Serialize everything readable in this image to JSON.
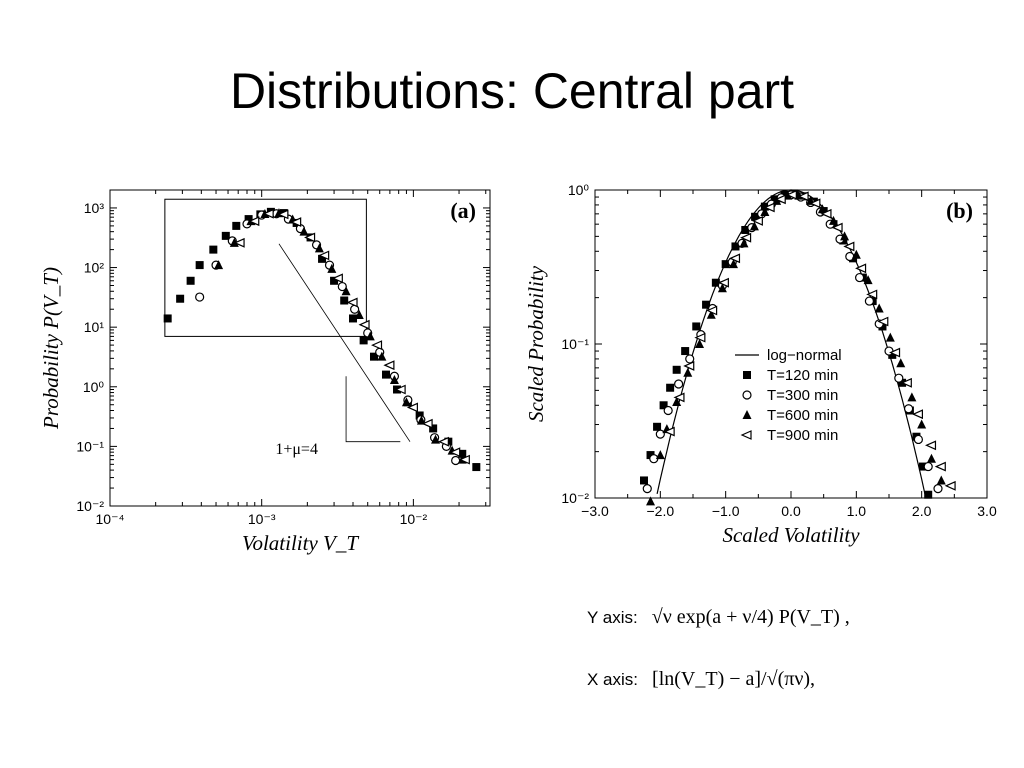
{
  "title": "Distributions: Central part",
  "notes": {
    "y_label": "Y axis:",
    "y_formula": "√ν exp(a + ν/4) P(V_T) ,",
    "x_label": "X axis:",
    "x_formula": "[ln(V_T) − a]/√(πν),"
  },
  "chart_data": [
    {
      "type": "scatter",
      "panel_label": "(a)",
      "xlabel": "Volatility V_T",
      "ylabel": "Probability P(V_T)",
      "x_scale": "log",
      "y_scale": "log",
      "xlim": [
        0.0001,
        0.032
      ],
      "ylim": [
        0.01,
        2000
      ],
      "x_ticks": [
        "10⁻⁴",
        "10⁻³",
        "10⁻²"
      ],
      "y_ticks": [
        "10⁻²",
        "10⁻¹",
        "10⁰",
        "10¹",
        "10²",
        "10³"
      ],
      "annotation": "1+μ=4",
      "series": [
        {
          "marker": "square-filled",
          "points": [
            [
              0.00024,
              14
            ],
            [
              0.00029,
              30
            ],
            [
              0.00034,
              60
            ],
            [
              0.00039,
              110
            ],
            [
              0.00048,
              200
            ],
            [
              0.00058,
              340
            ],
            [
              0.00068,
              500
            ],
            [
              0.00082,
              650
            ],
            [
              0.00098,
              780
            ],
            [
              0.00115,
              860
            ],
            [
              0.0014,
              820
            ],
            [
              0.0017,
              560
            ],
            [
              0.0021,
              320
            ],
            [
              0.0025,
              140
            ],
            [
              0.003,
              60
            ],
            [
              0.0035,
              28
            ],
            [
              0.004,
              14
            ],
            [
              0.0047,
              6
            ],
            [
              0.0055,
              3.2
            ],
            [
              0.0066,
              1.6
            ],
            [
              0.0078,
              0.9
            ],
            [
              0.0092,
              0.55
            ],
            [
              0.011,
              0.33
            ],
            [
              0.0135,
              0.2
            ],
            [
              0.017,
              0.12
            ],
            [
              0.021,
              0.075
            ],
            [
              0.026,
              0.045
            ]
          ]
        },
        {
          "marker": "circle-open",
          "points": [
            [
              0.00039,
              32
            ],
            [
              0.0005,
              110
            ],
            [
              0.00064,
              280
            ],
            [
              0.0008,
              540
            ],
            [
              0.001,
              760
            ],
            [
              0.00125,
              800
            ],
            [
              0.0015,
              650
            ],
            [
              0.0018,
              450
            ],
            [
              0.0023,
              240
            ],
            [
              0.0028,
              110
            ],
            [
              0.0034,
              48
            ],
            [
              0.0041,
              20
            ],
            [
              0.005,
              8
            ],
            [
              0.006,
              3.8
            ],
            [
              0.0075,
              1.5
            ],
            [
              0.0092,
              0.6
            ],
            [
              0.0112,
              0.28
            ],
            [
              0.0138,
              0.14
            ],
            [
              0.0165,
              0.1
            ],
            [
              0.019,
              0.058
            ]
          ]
        },
        {
          "marker": "triangle-filled",
          "points": [
            [
              0.00052,
              110
            ],
            [
              0.00066,
              260
            ],
            [
              0.00085,
              600
            ],
            [
              0.00105,
              790
            ],
            [
              0.0013,
              820
            ],
            [
              0.0016,
              640
            ],
            [
              0.0019,
              400
            ],
            [
              0.0024,
              210
            ],
            [
              0.0029,
              95
            ],
            [
              0.0036,
              40
            ],
            [
              0.0044,
              16
            ],
            [
              0.0052,
              7
            ],
            [
              0.0062,
              3.2
            ],
            [
              0.0075,
              1.3
            ],
            [
              0.009,
              0.55
            ],
            [
              0.0113,
              0.27
            ],
            [
              0.014,
              0.13
            ],
            [
              0.018,
              0.085
            ],
            [
              0.021,
              0.06
            ]
          ]
        },
        {
          "marker": "triangle-left-open",
          "points": [
            [
              0.00072,
              260
            ],
            [
              0.0009,
              600
            ],
            [
              0.00112,
              800
            ],
            [
              0.0014,
              780
            ],
            [
              0.0017,
              580
            ],
            [
              0.0021,
              320
            ],
            [
              0.0026,
              160
            ],
            [
              0.0032,
              66
            ],
            [
              0.004,
              26
            ],
            [
              0.0048,
              11
            ],
            [
              0.0058,
              5
            ],
            [
              0.007,
              2.3
            ],
            [
              0.0083,
              0.9
            ],
            [
              0.01,
              0.45
            ],
            [
              0.0125,
              0.24
            ],
            [
              0.016,
              0.12
            ],
            [
              0.019,
              0.08
            ],
            [
              0.022,
              0.06
            ]
          ]
        }
      ],
      "inset_box_data": {
        "x": [
          0.00023,
          0.0049
        ],
        "y": [
          7,
          1400
        ]
      },
      "slope_line_data": {
        "x": [
          0.0013,
          0.0095
        ],
        "y": [
          250,
          0.12
        ]
      },
      "slope_triangle_data": {
        "x": [
          0.0036,
          0.0082
        ],
        "y": [
          1.5,
          0.12
        ]
      }
    },
    {
      "type": "scatter",
      "panel_label": "(b)",
      "xlabel": "Scaled Volatility",
      "ylabel": "Scaled Probability",
      "x_scale": "linear",
      "y_scale": "log",
      "xlim": [
        -3.0,
        3.0
      ],
      "ylim": [
        0.01,
        1
      ],
      "x_ticks": [
        "−3.0",
        "−2.0",
        "−1.0",
        "0.0",
        "1.0",
        "2.0",
        "3.0"
      ],
      "y_ticks": [
        "10⁻²",
        "10⁻¹",
        "10⁰"
      ],
      "curve_sigma": 0.68,
      "legend": [
        {
          "label": "log−normal",
          "marker": "line"
        },
        {
          "label": "T=120 min",
          "marker": "square-filled"
        },
        {
          "label": "T=300 min",
          "marker": "circle-open"
        },
        {
          "label": "T=600 min",
          "marker": "triangle-filled"
        },
        {
          "label": "T=900 min",
          "marker": "triangle-left-open"
        }
      ],
      "series": [
        {
          "marker": "square-filled",
          "points": [
            [
              -2.25,
              0.013
            ],
            [
              -2.15,
              0.019
            ],
            [
              -2.05,
              0.029
            ],
            [
              -1.95,
              0.04
            ],
            [
              -1.85,
              0.052
            ],
            [
              -1.75,
              0.068
            ],
            [
              -1.62,
              0.09
            ],
            [
              -1.45,
              0.13
            ],
            [
              -1.3,
              0.18
            ],
            [
              -1.15,
              0.25
            ],
            [
              -1.0,
              0.33
            ],
            [
              -0.85,
              0.43
            ],
            [
              -0.7,
              0.55
            ],
            [
              -0.55,
              0.67
            ],
            [
              -0.4,
              0.78
            ],
            [
              -0.25,
              0.87
            ],
            [
              -0.1,
              0.93
            ],
            [
              0.05,
              0.95
            ],
            [
              0.2,
              0.91
            ],
            [
              0.35,
              0.84
            ],
            [
              0.5,
              0.73
            ],
            [
              0.65,
              0.6
            ],
            [
              0.8,
              0.47
            ],
            [
              0.95,
              0.36
            ],
            [
              1.1,
              0.27
            ],
            [
              1.25,
              0.19
            ],
            [
              1.4,
              0.13
            ],
            [
              1.55,
              0.085
            ],
            [
              1.7,
              0.056
            ],
            [
              1.82,
              0.037
            ],
            [
              1.92,
              0.025
            ],
            [
              2.02,
              0.016
            ],
            [
              2.1,
              0.0105
            ]
          ]
        },
        {
          "marker": "circle-open",
          "points": [
            [
              -2.2,
              0.0115
            ],
            [
              -2.1,
              0.018
            ],
            [
              -2.0,
              0.026
            ],
            [
              -1.88,
              0.037
            ],
            [
              -1.72,
              0.055
            ],
            [
              -1.55,
              0.08
            ],
            [
              -1.38,
              0.115
            ],
            [
              -1.2,
              0.17
            ],
            [
              -1.05,
              0.24
            ],
            [
              -0.9,
              0.34
            ],
            [
              -0.75,
              0.45
            ],
            [
              -0.6,
              0.57
            ],
            [
              -0.45,
              0.7
            ],
            [
              -0.3,
              0.81
            ],
            [
              -0.15,
              0.89
            ],
            [
              0.0,
              0.93
            ],
            [
              0.15,
              0.9
            ],
            [
              0.3,
              0.83
            ],
            [
              0.45,
              0.72
            ],
            [
              0.6,
              0.6
            ],
            [
              0.75,
              0.48
            ],
            [
              0.9,
              0.37
            ],
            [
              1.05,
              0.27
            ],
            [
              1.2,
              0.19
            ],
            [
              1.35,
              0.135
            ],
            [
              1.5,
              0.09
            ],
            [
              1.65,
              0.06
            ],
            [
              1.8,
              0.038
            ],
            [
              1.95,
              0.024
            ],
            [
              2.1,
              0.016
            ],
            [
              2.25,
              0.0115
            ]
          ]
        },
        {
          "marker": "triangle-filled",
          "points": [
            [
              -2.15,
              0.0095
            ],
            [
              -2.0,
              0.019
            ],
            [
              -1.9,
              0.028
            ],
            [
              -1.75,
              0.042
            ],
            [
              -1.58,
              0.065
            ],
            [
              -1.4,
              0.1
            ],
            [
              -1.22,
              0.155
            ],
            [
              -1.05,
              0.23
            ],
            [
              -0.88,
              0.33
            ],
            [
              -0.72,
              0.45
            ],
            [
              -0.56,
              0.58
            ],
            [
              -0.4,
              0.72
            ],
            [
              -0.22,
              0.85
            ],
            [
              -0.05,
              0.92
            ],
            [
              0.12,
              0.92
            ],
            [
              0.3,
              0.85
            ],
            [
              0.48,
              0.75
            ],
            [
              0.65,
              0.63
            ],
            [
              0.82,
              0.5
            ],
            [
              1.0,
              0.38
            ],
            [
              1.18,
              0.26
            ],
            [
              1.35,
              0.17
            ],
            [
              1.52,
              0.11
            ],
            [
              1.68,
              0.075
            ],
            [
              1.85,
              0.045
            ],
            [
              2.0,
              0.03
            ],
            [
              2.15,
              0.018
            ],
            [
              2.3,
              0.013
            ]
          ]
        },
        {
          "marker": "triangle-left-open",
          "points": [
            [
              -1.85,
              0.027
            ],
            [
              -1.7,
              0.045
            ],
            [
              -1.55,
              0.072
            ],
            [
              -1.38,
              0.11
            ],
            [
              -1.2,
              0.165
            ],
            [
              -1.02,
              0.25
            ],
            [
              -0.85,
              0.36
            ],
            [
              -0.68,
              0.49
            ],
            [
              -0.5,
              0.63
            ],
            [
              -0.32,
              0.77
            ],
            [
              -0.15,
              0.87
            ],
            [
              0.02,
              0.93
            ],
            [
              0.2,
              0.91
            ],
            [
              0.38,
              0.82
            ],
            [
              0.55,
              0.7
            ],
            [
              0.72,
              0.57
            ],
            [
              0.9,
              0.43
            ],
            [
              1.08,
              0.31
            ],
            [
              1.25,
              0.21
            ],
            [
              1.42,
              0.14
            ],
            [
              1.6,
              0.088
            ],
            [
              1.78,
              0.056
            ],
            [
              1.95,
              0.035
            ],
            [
              2.15,
              0.022
            ],
            [
              2.3,
              0.016
            ],
            [
              2.45,
              0.012
            ]
          ]
        }
      ]
    }
  ]
}
